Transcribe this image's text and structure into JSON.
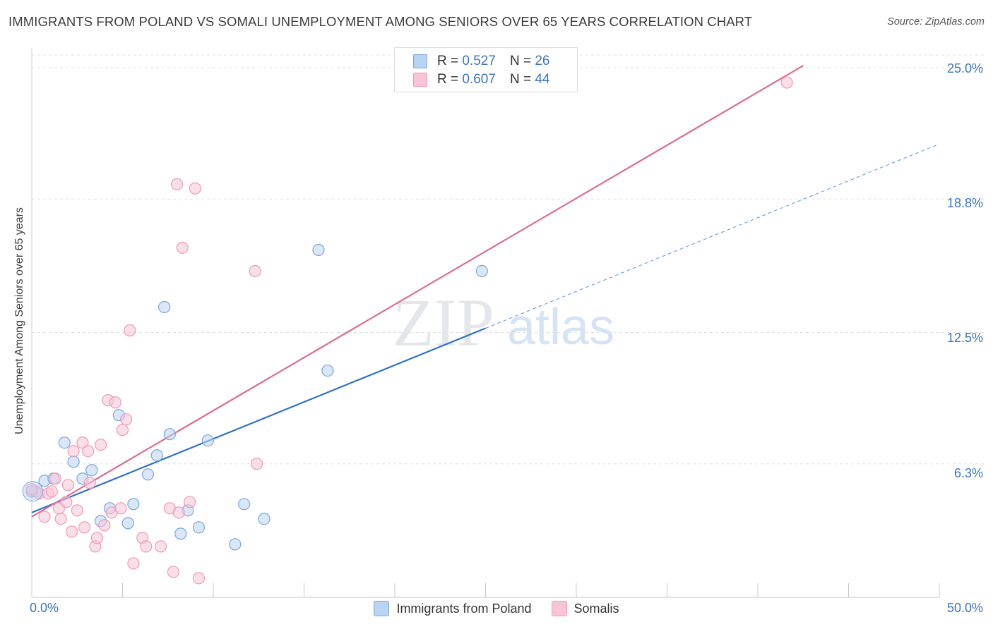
{
  "title": "IMMIGRANTS FROM POLAND VS SOMALI UNEMPLOYMENT AMONG SENIORS OVER 65 YEARS CORRELATION CHART",
  "source": "Source: ZipAtlas.com",
  "watermark": {
    "zip": "ZIP",
    "atlas": "atlas"
  },
  "legend": {
    "poland": {
      "r_label": "R =",
      "r_value": "0.527",
      "n_label": "N =",
      "n_value": "26"
    },
    "somali": {
      "r_label": "R =",
      "r_value": "0.607",
      "n_label": "N =",
      "n_value": "44"
    }
  },
  "colors": {
    "poland_fill": "#b9d3f2",
    "poland_stroke": "#7aa6dc",
    "poland_line": "#2f72cc",
    "somali_fill": "#f8c5d6",
    "somali_stroke": "#ee9ab6",
    "somali_line": "#e06b96",
    "axis_text": "#3b74c4",
    "grid": "#e0e0e0"
  },
  "chart_data": {
    "type": "scatter",
    "title": "IMMIGRANTS FROM POLAND VS SOMALI UNEMPLOYMENT AMONG SENIORS OVER 65 YEARS CORRELATION CHART",
    "xlabel": "",
    "ylabel": "Unemployment Among Seniors over 65 years",
    "xlim": [
      0,
      50
    ],
    "ylim": [
      0,
      25.6
    ],
    "x_tick_labels": [
      {
        "value": 0,
        "label": "0.0%"
      },
      {
        "value": 50,
        "label": "50.0%"
      }
    ],
    "y_tick_labels": [
      {
        "value": 6.3,
        "label": "6.3%"
      },
      {
        "value": 12.5,
        "label": "12.5%"
      },
      {
        "value": 18.8,
        "label": "18.8%"
      },
      {
        "value": 25.0,
        "label": "25.0%"
      }
    ],
    "grid": true,
    "legend_position": "top-center",
    "series": [
      {
        "name": "Immigrants from Poland",
        "r": 0.527,
        "n": 26,
        "trend": {
          "x0": 0,
          "y0": 4.0,
          "x1": 25,
          "y1": 12.7,
          "dashed_to_x": 50,
          "dashed_to_y": 21.4
        },
        "points": [
          {
            "x": 0.0,
            "y": 5.0
          },
          {
            "x": 0.7,
            "y": 5.5
          },
          {
            "x": 1.2,
            "y": 5.6
          },
          {
            "x": 1.8,
            "y": 7.3
          },
          {
            "x": 2.3,
            "y": 6.4
          },
          {
            "x": 2.8,
            "y": 5.6
          },
          {
            "x": 3.3,
            "y": 6.0
          },
          {
            "x": 3.8,
            "y": 3.6
          },
          {
            "x": 4.3,
            "y": 4.2
          },
          {
            "x": 4.8,
            "y": 8.6
          },
          {
            "x": 5.3,
            "y": 3.5
          },
          {
            "x": 5.6,
            "y": 4.4
          },
          {
            "x": 6.4,
            "y": 5.8
          },
          {
            "x": 6.9,
            "y": 6.7
          },
          {
            "x": 7.3,
            "y": 13.7
          },
          {
            "x": 7.6,
            "y": 7.7
          },
          {
            "x": 8.2,
            "y": 3.0
          },
          {
            "x": 8.6,
            "y": 4.1
          },
          {
            "x": 9.2,
            "y": 3.3
          },
          {
            "x": 9.7,
            "y": 7.4
          },
          {
            "x": 11.2,
            "y": 2.5
          },
          {
            "x": 11.7,
            "y": 4.4
          },
          {
            "x": 12.8,
            "y": 3.7
          },
          {
            "x": 15.8,
            "y": 16.4
          },
          {
            "x": 16.3,
            "y": 10.7
          },
          {
            "x": 24.8,
            "y": 15.4
          }
        ]
      },
      {
        "name": "Somalis",
        "r": 0.607,
        "n": 44,
        "trend": {
          "x0": 0,
          "y0": 3.8,
          "x1": 42.5,
          "y1": 25.1
        },
        "points": [
          {
            "x": 0.2,
            "y": 5.0
          },
          {
            "x": 0.4,
            "y": 4.9
          },
          {
            "x": 0.7,
            "y": 3.8
          },
          {
            "x": 0.9,
            "y": 4.9
          },
          {
            "x": 1.1,
            "y": 5.0
          },
          {
            "x": 1.3,
            "y": 5.6
          },
          {
            "x": 1.5,
            "y": 4.2
          },
          {
            "x": 1.6,
            "y": 3.7
          },
          {
            "x": 1.9,
            "y": 4.5
          },
          {
            "x": 2.0,
            "y": 5.3
          },
          {
            "x": 2.2,
            "y": 3.1
          },
          {
            "x": 2.3,
            "y": 6.9
          },
          {
            "x": 2.5,
            "y": 4.1
          },
          {
            "x": 2.8,
            "y": 7.3
          },
          {
            "x": 2.9,
            "y": 3.3
          },
          {
            "x": 3.1,
            "y": 6.9
          },
          {
            "x": 3.2,
            "y": 5.4
          },
          {
            "x": 3.5,
            "y": 2.4
          },
          {
            "x": 3.6,
            "y": 2.8
          },
          {
            "x": 3.8,
            "y": 7.2
          },
          {
            "x": 4.0,
            "y": 3.4
          },
          {
            "x": 4.2,
            "y": 9.3
          },
          {
            "x": 4.4,
            "y": 4.0
          },
          {
            "x": 4.6,
            "y": 9.2
          },
          {
            "x": 4.9,
            "y": 4.2
          },
          {
            "x": 5.0,
            "y": 7.9
          },
          {
            "x": 5.2,
            "y": 8.4
          },
          {
            "x": 5.4,
            "y": 12.6
          },
          {
            "x": 5.6,
            "y": 1.6
          },
          {
            "x": 6.1,
            "y": 2.8
          },
          {
            "x": 6.3,
            "y": 2.4
          },
          {
            "x": 7.1,
            "y": 2.4
          },
          {
            "x": 7.6,
            "y": 4.2
          },
          {
            "x": 7.8,
            "y": 1.2
          },
          {
            "x": 8.1,
            "y": 4.0
          },
          {
            "x": 8.0,
            "y": 19.5
          },
          {
            "x": 8.3,
            "y": 16.5
          },
          {
            "x": 8.7,
            "y": 4.5
          },
          {
            "x": 9.0,
            "y": 19.3
          },
          {
            "x": 9.2,
            "y": 0.9
          },
          {
            "x": 12.3,
            "y": 15.4
          },
          {
            "x": 12.4,
            "y": 6.3
          },
          {
            "x": 41.6,
            "y": 24.3
          },
          {
            "x": 0.0,
            "y": 5.1
          }
        ]
      }
    ]
  }
}
